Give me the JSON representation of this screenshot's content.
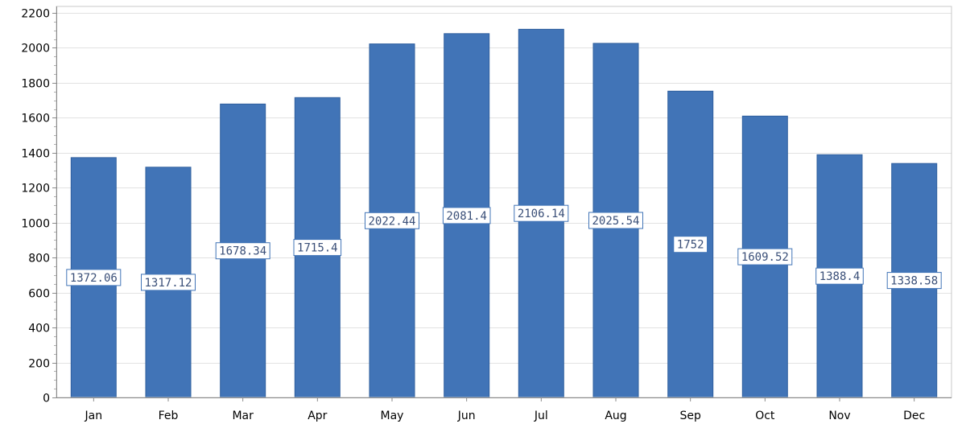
{
  "chart_data": {
    "type": "bar",
    "categories": [
      "Jan",
      "Feb",
      "Mar",
      "Apr",
      "May",
      "Jun",
      "Jul",
      "Aug",
      "Sep",
      "Oct",
      "Nov",
      "Dec"
    ],
    "values": [
      1372.06,
      1317.12,
      1678.34,
      1715.4,
      2022.44,
      2081.4,
      2106.14,
      2025.54,
      1752,
      1609.52,
      1388.4,
      1338.58
    ],
    "data_labels": [
      "1372.06",
      "1317.12",
      "1678.34",
      "1715.4",
      "2022.44",
      "2081.4",
      "2106.14",
      "2025.54",
      "1752",
      "1609.52",
      "1388.4",
      "1338.58"
    ],
    "ylim": [
      0,
      2200
    ],
    "yticks": [
      0,
      200,
      400,
      600,
      800,
      1000,
      1200,
      1400,
      1600,
      1800,
      2000,
      2200
    ],
    "title": "",
    "xlabel": "",
    "ylabel": "",
    "grid": true,
    "bar_color": "#4174b7",
    "label_border_color": "#4174b7"
  }
}
